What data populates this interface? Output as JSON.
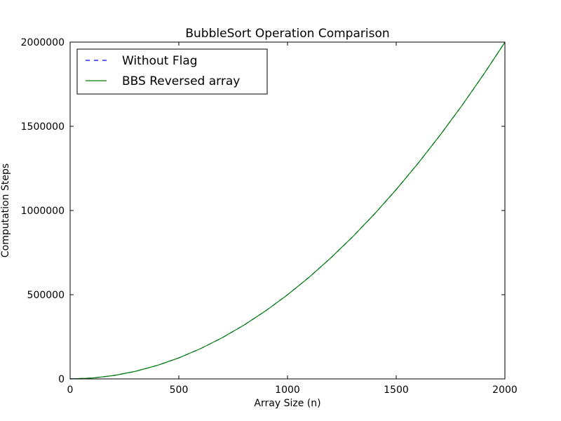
{
  "chart_data": {
    "type": "line",
    "title": "BubbleSort Operation Comparison",
    "xlabel": "Array Size (n)",
    "ylabel": "Computation Steps",
    "xlim": [
      0,
      2000
    ],
    "ylim": [
      0,
      2000000
    ],
    "x_ticks": [
      0,
      500,
      1000,
      1500,
      2000
    ],
    "y_ticks": [
      0,
      500000,
      1000000,
      1500000,
      2000000
    ],
    "x_tick_labels": [
      "0",
      "500",
      "1000",
      "1500",
      "2000"
    ],
    "y_tick_labels": [
      "0",
      "500000",
      "1000000",
      "1500000",
      "2000000"
    ],
    "grid": false,
    "legend_position": "top-left",
    "x": [
      0,
      100,
      200,
      300,
      400,
      500,
      600,
      700,
      800,
      900,
      1000,
      1100,
      1200,
      1300,
      1400,
      1500,
      1600,
      1700,
      1800,
      1900,
      2000
    ],
    "series": [
      {
        "name": "Without Flag",
        "color": "#0000ff",
        "style": "dashed",
        "values": [
          0,
          4950,
          19900,
          44850,
          79800,
          124750,
          179700,
          244650,
          319600,
          404550,
          499500,
          604450,
          719400,
          844350,
          979300,
          1124250,
          1279200,
          1444150,
          1619100,
          1804050,
          1999000
        ]
      },
      {
        "name": "BBS Reversed array",
        "color": "#008000",
        "style": "solid",
        "values": [
          0,
          4950,
          19900,
          44850,
          79800,
          124750,
          179700,
          244650,
          319600,
          404550,
          499500,
          604450,
          719400,
          844350,
          979300,
          1124250,
          1279200,
          1444150,
          1619100,
          1804050,
          1999000
        ]
      }
    ]
  }
}
